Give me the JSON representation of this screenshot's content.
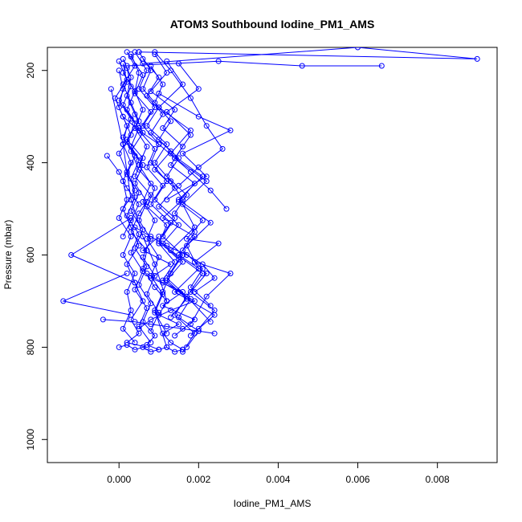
{
  "chart_data": {
    "type": "line",
    "title": "ATOM3 Southbound Iodine_PM1_AMS",
    "xlabel": "Iodine_PM1_AMS",
    "ylabel": "Pressure (mbar)",
    "xlim": [
      -0.0018,
      0.0095
    ],
    "ylim": [
      1050,
      150
    ],
    "y_reversed": true,
    "x_ticks": [
      0.0,
      0.002,
      0.004,
      0.006,
      0.008
    ],
    "x_tick_labels": [
      "0.000",
      "0.002",
      "0.004",
      "0.006",
      "0.008"
    ],
    "y_ticks": [
      200,
      400,
      600,
      800,
      1000
    ],
    "y_tick_labels": [
      "200",
      "400",
      "600",
      "800",
      "1000"
    ],
    "grid": false,
    "marker": "open-circle",
    "color": "#0000ff",
    "series": [
      {
        "x": [
          0.0002,
          0.0004,
          0.0001,
          0.0003,
          0.0005,
          0.0002,
          0.0006,
          0.0004,
          0.0008,
          0.0005,
          0.0003,
          0.0007,
          0.0006,
          0.0009,
          0.0012,
          0.001,
          0.0015,
          0.0011,
          0.0013,
          0.0016
        ],
        "y": [
          160,
          190,
          230,
          270,
          310,
          350,
          390,
          430,
          470,
          510,
          550,
          590,
          630,
          670,
          700,
          730,
          750,
          770,
          790,
          805
        ]
      },
      {
        "x": [
          0.0001,
          0.0003,
          0.0002,
          0.0004,
          0.0006,
          0.0003,
          0.0005,
          0.0009,
          0.0007,
          0.0012,
          0.001,
          0.0014,
          0.0011,
          0.0018,
          0.0015,
          0.002,
          0.0017
        ],
        "y": [
          175,
          215,
          255,
          295,
          335,
          375,
          415,
          455,
          495,
          535,
          575,
          615,
          655,
          695,
          735,
          765,
          800
        ]
      },
      {
        "x": [
          0.0005,
          0.0008,
          0.0006,
          0.001,
          0.0007,
          0.0012,
          0.0009,
          0.0013,
          0.0016,
          0.0011,
          0.0019,
          0.0015,
          0.0022,
          0.0018,
          0.0024,
          0.002
        ],
        "y": [
          160,
          200,
          240,
          280,
          320,
          360,
          400,
          440,
          480,
          520,
          560,
          600,
          640,
          680,
          720,
          760
        ]
      },
      {
        "x": [
          0.0,
          0.0002,
          -0.0001,
          0.0001,
          0.0003,
          0.0,
          0.0002,
          0.0004,
          0.0001,
          0.0003,
          0.0005,
          0.0002,
          0.0004,
          0.0006,
          0.0003,
          0.0005,
          0.0002,
          0.0007
        ],
        "y": [
          180,
          220,
          260,
          300,
          340,
          380,
          420,
          460,
          500,
          540,
          580,
          620,
          660,
          700,
          740,
          770,
          790,
          800
        ]
      },
      {
        "x": [
          0.0009,
          0.0012,
          0.0008,
          0.0014,
          0.0011,
          0.0016,
          0.0013,
          0.0019,
          0.0015,
          0.0021,
          0.0017,
          0.0025,
          0.0019,
          0.0028,
          0.0022,
          0.0018
        ],
        "y": [
          165,
          205,
          245,
          285,
          325,
          365,
          405,
          445,
          485,
          525,
          565,
          575,
          615,
          640,
          690,
          750
        ]
      },
      {
        "x": [
          0.0003,
          0.0006,
          0.0004,
          0.0008,
          0.0005,
          0.0009,
          0.0007,
          0.0011,
          0.0008,
          0.0013,
          0.001,
          0.0015,
          0.0012,
          0.0017,
          0.0014,
          0.0019,
          0.0016
        ],
        "y": [
          170,
          210,
          250,
          290,
          330,
          370,
          410,
          450,
          490,
          530,
          570,
          610,
          650,
          690,
          730,
          770,
          810
        ]
      },
      {
        "x": [
          0.0001,
          0.0002,
          0.0,
          0.0003,
          0.0001,
          0.0004,
          0.0002,
          0.0005,
          0.0003,
          0.0006,
          0.0004,
          0.0007,
          0.0005,
          0.0008,
          0.0006,
          0.0009,
          0.0007,
          0.001
        ],
        "y": [
          185,
          225,
          265,
          305,
          345,
          385,
          425,
          465,
          505,
          545,
          585,
          625,
          665,
          705,
          745,
          775,
          795,
          805
        ]
      },
      {
        "x": [
          0.0012,
          0.0016,
          0.001,
          0.0018,
          0.0013,
          0.0021,
          0.0015,
          0.0023,
          0.0017,
          0.002,
          0.0014,
          0.0024,
          0.0018
        ],
        "y": [
          180,
          230,
          280,
          330,
          380,
          430,
          480,
          530,
          580,
          630,
          680,
          730,
          775
        ]
      },
      {
        "x": [
          0.0004,
          0.0007,
          0.0005,
          0.0009,
          0.0006,
          0.001,
          0.0008,
          0.0012,
          0.0009,
          0.0014,
          0.0011,
          0.0016,
          0.0013,
          0.0011,
          0.0009,
          0.0012
        ],
        "y": [
          160,
          200,
          240,
          280,
          320,
          360,
          400,
          440,
          480,
          520,
          560,
          600,
          640,
          680,
          720,
          800
        ]
      },
      {
        "x": [
          0.0002,
          0.0003,
          0.0001,
          0.0004,
          0.0002,
          0.0005,
          0.0003,
          0.0004,
          0.0002,
          0.0005,
          0.0003,
          0.0006,
          0.0004,
          0.0007,
          0.0005,
          0.0008
        ],
        "y": [
          195,
          235,
          275,
          315,
          355,
          395,
          435,
          475,
          515,
          555,
          595,
          635,
          675,
          715,
          755,
          790
        ]
      },
      {
        "x": [
          0.0006,
          0.001,
          0.0007,
          0.0011,
          0.0008,
          0.0013,
          0.0009,
          0.0014,
          0.001,
          0.0015,
          0.0011,
          0.0016,
          0.0012,
          0.0017,
          0.0013
        ],
        "y": [
          175,
          215,
          255,
          295,
          335,
          375,
          415,
          455,
          495,
          535,
          575,
          615,
          655,
          695,
          735
        ]
      },
      {
        "x": [
          0.0,
          0.0001,
          0.0,
          0.0002,
          0.0001,
          0.0003,
          0.0001,
          0.0002,
          0.0,
          0.0003,
          0.0001,
          0.0004,
          0.0002,
          0.0003,
          0.0001,
          0.0004
        ],
        "y": [
          200,
          240,
          280,
          320,
          360,
          400,
          440,
          480,
          520,
          560,
          600,
          640,
          680,
          720,
          760,
          790
        ]
      },
      {
        "x": [
          0.0015,
          0.002,
          0.0012,
          0.0018,
          0.0014,
          0.0022,
          0.0016,
          0.0019,
          0.0013,
          0.0021,
          0.0017,
          0.0023
        ],
        "y": [
          185,
          240,
          290,
          340,
          390,
          440,
          490,
          540,
          590,
          640,
          690,
          745
        ]
      },
      {
        "x": [
          0.0003,
          0.0005,
          0.0004,
          0.0006,
          0.0004,
          0.0007,
          0.0005,
          0.0008,
          0.0006,
          0.0009,
          0.0007,
          0.001,
          0.0008,
          0.0011,
          0.0009,
          0.0012
        ],
        "y": [
          165,
          205,
          245,
          285,
          325,
          365,
          405,
          445,
          485,
          525,
          565,
          605,
          645,
          685,
          725,
          770
        ]
      },
      {
        "x": [
          0.0008,
          0.0011,
          0.0009,
          0.0013,
          0.001,
          0.0015,
          0.0012,
          0.0017,
          0.0014,
          0.0019,
          0.0016,
          0.0021,
          0.0018,
          0.0023
        ],
        "y": [
          190,
          230,
          270,
          310,
          350,
          390,
          430,
          470,
          510,
          550,
          590,
          630,
          670,
          710
        ]
      },
      {
        "x": [
          0.0001,
          0.0004,
          0.0002,
          0.0005,
          0.0003,
          0.0006,
          0.0004,
          0.0007,
          0.0005,
          0.0008,
          0.0006,
          0.0009,
          0.0007,
          0.001,
          0.0008
        ],
        "y": [
          205,
          245,
          285,
          325,
          365,
          405,
          445,
          485,
          525,
          565,
          605,
          645,
          685,
          725,
          765
        ]
      },
      {
        "x": [
          0.0002,
          0.0025,
          0.0046,
          0.0066
        ],
        "y": [
          190,
          180,
          190,
          190
        ]
      },
      {
        "x": [
          0.0005,
          0.009,
          0.006,
          0.0006
        ],
        "y": [
          160,
          175,
          150,
          185
        ]
      },
      {
        "x": [
          0.0003,
          -0.0012,
          0.0004
        ],
        "y": [
          520,
          600,
          660
        ]
      },
      {
        "x": [
          0.0002,
          -0.0014,
          0.0003
        ],
        "y": [
          640,
          700,
          730
        ]
      },
      {
        "x": [
          -0.0004,
          0.0004,
          0.0008,
          0.0012,
          0.0016,
          0.002,
          0.0024
        ],
        "y": [
          740,
          745,
          750,
          755,
          760,
          765,
          770
        ]
      },
      {
        "x": [
          0.001,
          0.002,
          0.0028,
          0.0016,
          0.0022,
          0.0012
        ],
        "y": [
          250,
          300,
          330,
          380,
          430,
          480
        ]
      },
      {
        "x": [
          0.0,
          0.0002,
          0.0004,
          0.0006,
          0.0008,
          0.001,
          0.0012,
          0.0014,
          0.0016
        ],
        "y": [
          800,
          795,
          805,
          800,
          810,
          805,
          800,
          810,
          805
        ]
      },
      {
        "x": [
          0.0007,
          0.0011,
          0.0015,
          0.0019,
          0.0013,
          0.0008,
          0.0005
        ],
        "y": [
          640,
          660,
          680,
          700,
          720,
          740,
          760
        ]
      },
      {
        "x": [
          -0.0002,
          0.0001,
          0.0003,
          0.0006,
          0.0009,
          0.0012
        ],
        "y": [
          240,
          360,
          480,
          560,
          620,
          700
        ]
      },
      {
        "x": [
          0.0009,
          0.0013,
          0.0018,
          0.0022,
          0.0026,
          0.002,
          0.0015
        ],
        "y": [
          160,
          200,
          260,
          320,
          370,
          410,
          450
        ]
      },
      {
        "x": [
          0.0004,
          0.0008,
          0.0012,
          0.0017,
          0.0021,
          0.0024,
          0.0019
        ],
        "y": [
          540,
          560,
          580,
          600,
          620,
          650,
          680
        ]
      },
      {
        "x": [
          0.0001,
          0.0005,
          0.001,
          0.0014,
          0.0018,
          0.0023,
          0.0027
        ],
        "y": [
          300,
          330,
          360,
          390,
          420,
          460,
          500
        ]
      },
      {
        "x": [
          -0.0003,
          0.0,
          0.0002,
          0.0005,
          0.0003,
          0.0001
        ],
        "y": [
          385,
          420,
          455,
          490,
          525,
          560
        ]
      },
      {
        "x": [
          0.001,
          0.0006,
          0.0013,
          0.0008,
          0.0016,
          0.0011,
          0.0019,
          0.0014
        ],
        "y": [
          560,
          590,
          620,
          650,
          680,
          710,
          740,
          775
        ]
      }
    ]
  }
}
